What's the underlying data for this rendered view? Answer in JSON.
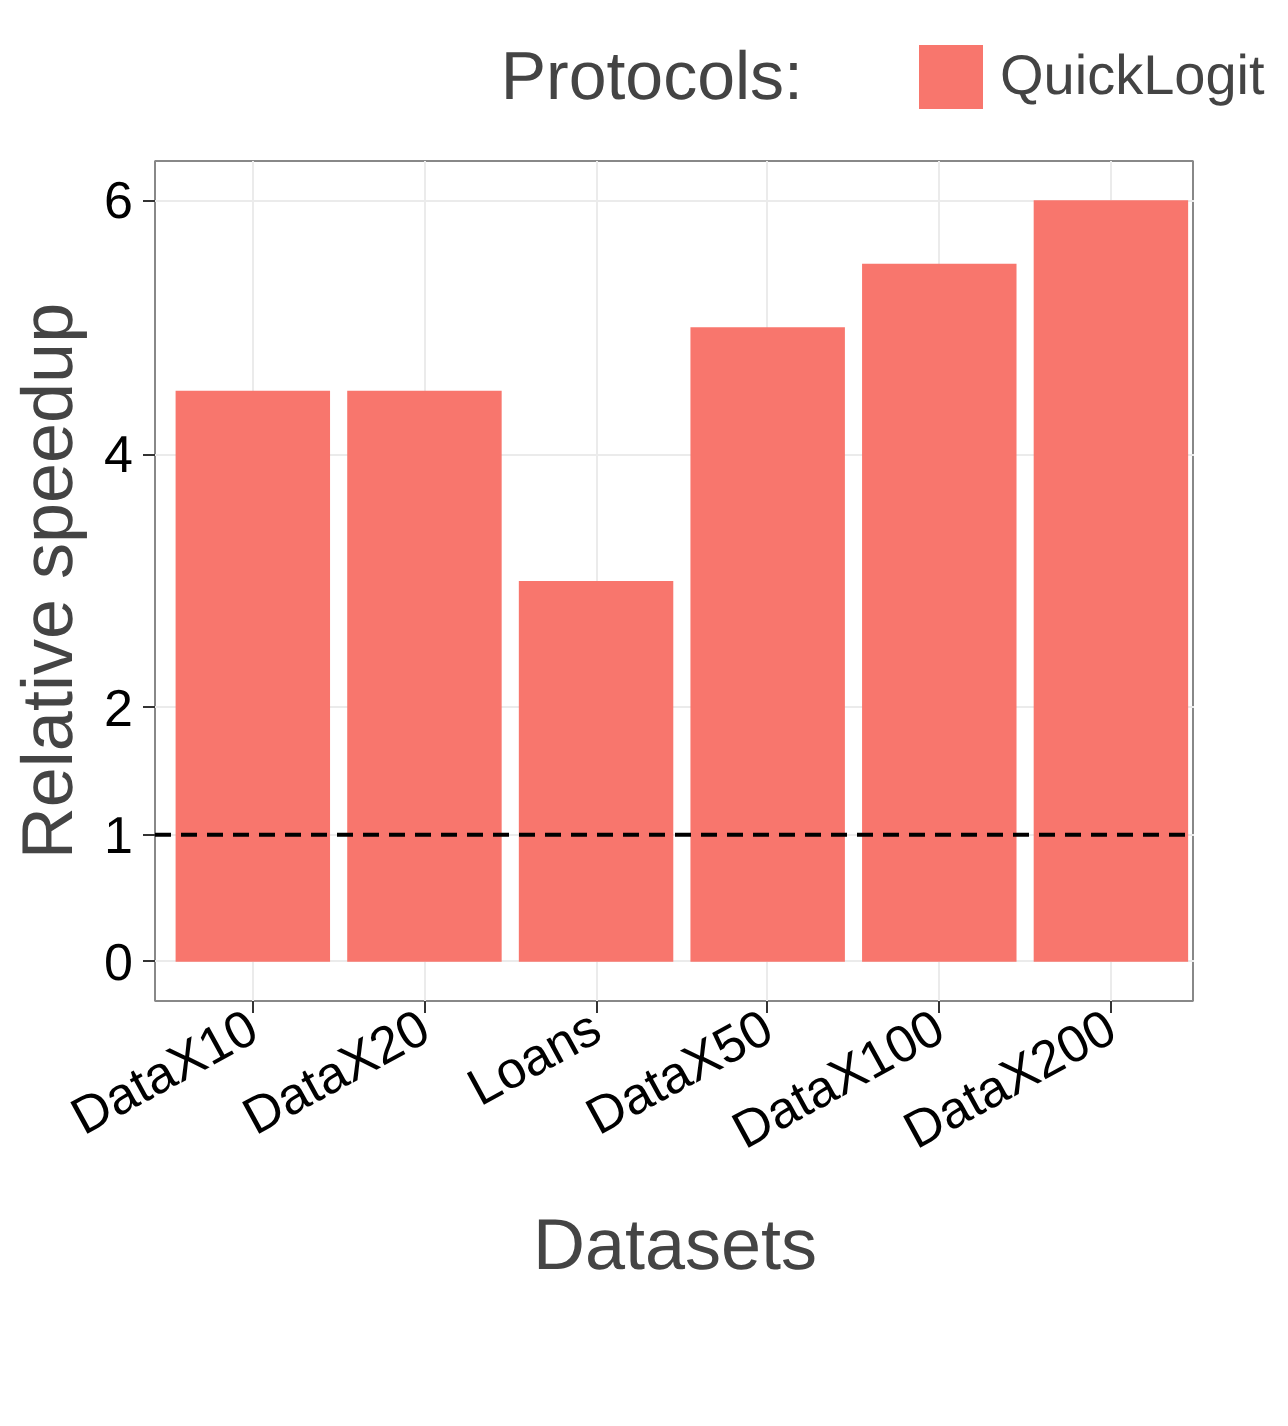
{
  "chart_data": {
    "type": "bar",
    "xlabel": "Datasets",
    "ylabel": "Relative speedup",
    "legend_title": "Protocols:",
    "categories": [
      "DataX10",
      "DataX20",
      "Loans",
      "DataX50",
      "DataX100",
      "DataX200"
    ],
    "series": [
      {
        "name": "QuickLogit",
        "color": "#f8766d",
        "values": [
          4.5,
          4.5,
          3,
          5,
          5.5,
          6
        ]
      }
    ],
    "ylim": [
      -0.31,
      6.31
    ],
    "yticks": [
      0,
      1,
      2,
      4,
      6
    ],
    "grid": true,
    "legend": "top",
    "ref_lines": [
      {
        "axis": "y",
        "value": 1,
        "line_style": "dashed",
        "color": "#000000"
      }
    ]
  }
}
